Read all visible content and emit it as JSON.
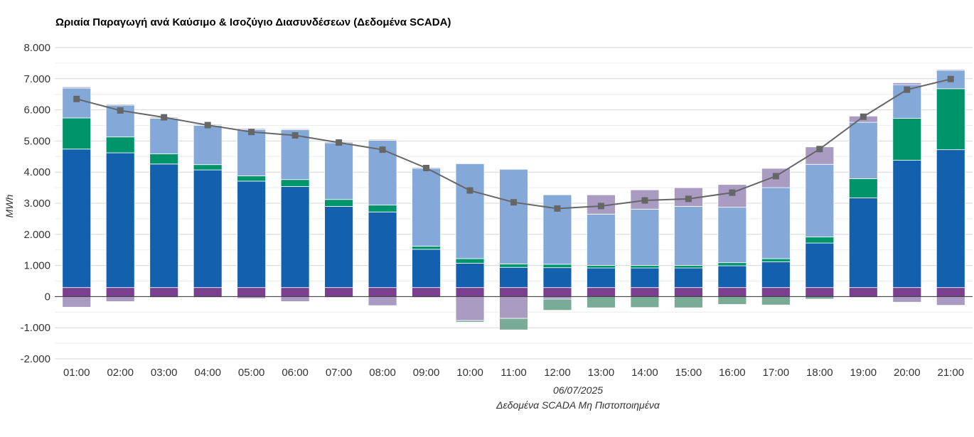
{
  "chart_data": {
    "type": "bar",
    "title": "Ωριαία Παραγωγή ανά Καύσιμο & Ισοζύγιο Διασυνδέσεων (Δεδομένα SCADA)",
    "ylabel": "MWh",
    "xlabel": "06/07/2025",
    "xlabel_sub": "Δεδομένα SCADA Μη Πιστοποιημένα",
    "ylim": [
      -2000,
      8000
    ],
    "yticks": [
      8000,
      7000,
      6000,
      5000,
      4000,
      3000,
      2000,
      1000,
      0,
      -1000,
      -2000
    ],
    "ytick_labels": [
      "8.000",
      "7.000",
      "6.000",
      "5.000",
      "4.000",
      "3.000",
      "2.000",
      "1.000",
      "0",
      "-1.000",
      "-2.000"
    ],
    "grid": true,
    "stacked": true,
    "categories": [
      "01:00",
      "02:00",
      "03:00",
      "04:00",
      "05:00",
      "06:00",
      "07:00",
      "08:00",
      "09:00",
      "10:00",
      "11:00",
      "12:00",
      "13:00",
      "14:00",
      "15:00",
      "16:00",
      "17:00",
      "18:00",
      "19:00",
      "20:00",
      "21:00"
    ],
    "colors": {
      "purple": "#7b3f8f",
      "blue": "#1361ae",
      "green": "#00946a",
      "lightblue": "#84a9d8",
      "lavender": "#a99bc2",
      "sage": "#7aab96",
      "line": "#666666"
    },
    "series": [
      {
        "color": "purple",
        "values": [
          290,
          290,
          290,
          290,
          290,
          290,
          290,
          290,
          290,
          290,
          290,
          290,
          290,
          290,
          290,
          290,
          290,
          290,
          290,
          290,
          290
        ]
      },
      {
        "color": "blue",
        "values": [
          4450,
          4330,
          3970,
          3780,
          3420,
          3250,
          2610,
          2430,
          1230,
          780,
          650,
          640,
          630,
          630,
          630,
          700,
          830,
          1430,
          2880,
          4090,
          4430
        ]
      },
      {
        "color": "green",
        "values": [
          1000,
          510,
          330,
          170,
          170,
          220,
          220,
          220,
          100,
          150,
          110,
          110,
          80,
          80,
          80,
          100,
          100,
          200,
          620,
          1350,
          1960
        ]
      },
      {
        "color": "lightblue",
        "values": [
          960,
          1020,
          1140,
          1260,
          1490,
          1600,
          1820,
          2080,
          2500,
          3050,
          3040,
          2230,
          1650,
          1810,
          1900,
          1780,
          2280,
          2330,
          1810,
          1080,
          590
        ]
      },
      {
        "color": "lavender",
        "values": [
          40,
          30,
          30,
          30,
          30,
          30,
          30,
          30,
          30,
          0,
          0,
          0,
          620,
          620,
          600,
          730,
          620,
          560,
          200,
          60,
          30
        ]
      }
    ],
    "negative_series": [
      {
        "color": "lavender",
        "values": [
          -340,
          -160,
          -30,
          -30,
          -60,
          -160,
          -30,
          -290,
          -30,
          -770,
          -700,
          -80,
          0,
          0,
          0,
          0,
          0,
          0,
          -30,
          -180,
          -280
        ]
      },
      {
        "color": "sage",
        "values": [
          0,
          0,
          0,
          0,
          0,
          0,
          0,
          0,
          0,
          -50,
          -370,
          -360,
          -360,
          -350,
          -360,
          -250,
          -270,
          -80,
          0,
          0,
          0
        ]
      }
    ],
    "line": {
      "color": "line",
      "values": [
        6350,
        5980,
        5760,
        5510,
        5290,
        5180,
        4950,
        4720,
        4130,
        3410,
        3030,
        2830,
        2910,
        3090,
        3140,
        3340,
        3870,
        4740,
        5780,
        6650,
        6990
      ]
    }
  }
}
